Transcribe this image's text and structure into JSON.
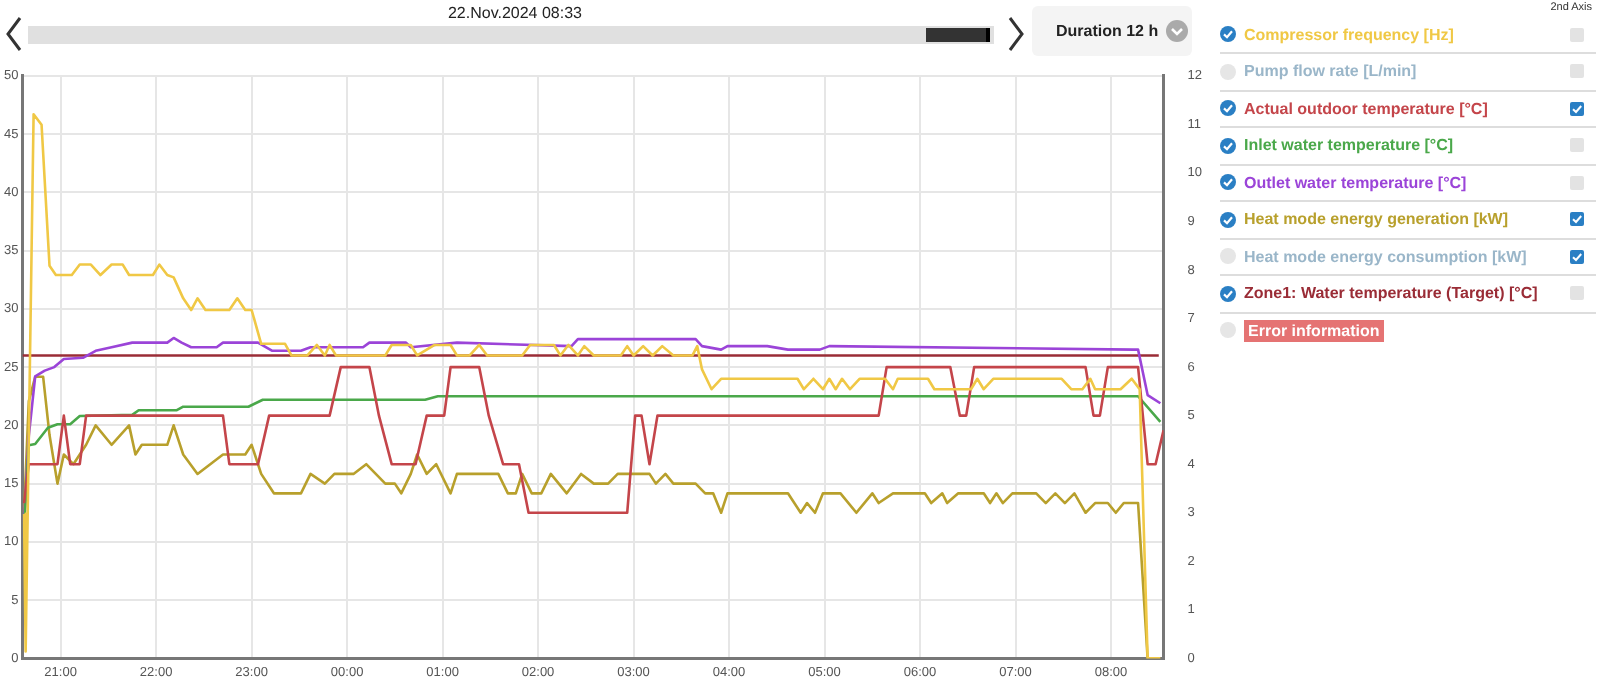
{
  "chart_data": {
    "type": "line",
    "title": "22.Nov.2024 08:33",
    "annotations": [
      "Duration 12 h",
      "2nd Axis",
      "Error information"
    ],
    "xlim": [
      "2024-11-21T20:36",
      "2024-11-22T08:33"
    ],
    "xticks": [
      {
        "value": "2024-11-21T21:00",
        "label": "21:00"
      },
      {
        "value": "2024-11-21T22:00",
        "label": "22:00"
      },
      {
        "value": "2024-11-21T23:00",
        "label": "23:00"
      },
      {
        "value": "2024-11-22T00:00",
        "label": "00:00"
      },
      {
        "value": "2024-11-22T01:00",
        "label": "01:00"
      },
      {
        "value": "2024-11-22T02:00",
        "label": "02:00"
      },
      {
        "value": "2024-11-22T03:00",
        "label": "03:00"
      },
      {
        "value": "2024-11-22T04:00",
        "label": "04:00"
      },
      {
        "value": "2024-11-22T05:00",
        "label": "05:00"
      },
      {
        "value": "2024-11-22T06:00",
        "label": "06:00"
      },
      {
        "value": "2024-11-22T07:00",
        "label": "07:00"
      },
      {
        "value": "2024-11-22T08:00",
        "label": "08:00"
      }
    ],
    "ylim": [
      0,
      50
    ],
    "yticks": [
      0,
      5,
      10,
      15,
      20,
      25,
      30,
      35,
      40,
      45,
      50
    ],
    "y2lim": [
      0,
      12
    ],
    "y2ticks": [
      0,
      1,
      2,
      3,
      4,
      5,
      6,
      7,
      8,
      9,
      10,
      11,
      12
    ],
    "grid": true,
    "legend": "right",
    "series": [
      {
        "name": "Compressor frequency [Hz]",
        "color": "#f0c845",
        "x": [
          "2024-11-21T20:37",
          "2024-11-21T20:38",
          "2024-11-21T20:43",
          "2024-11-21T20:48",
          "2024-11-21T20:53",
          "2024-11-21T20:57",
          "2024-11-21T21:07",
          "2024-11-21T21:12",
          "2024-11-21T21:19",
          "2024-11-21T21:25",
          "2024-11-21T21:32",
          "2024-11-21T21:39",
          "2024-11-21T21:43",
          "2024-11-21T21:58",
          "2024-11-21T22:02",
          "2024-11-21T22:07",
          "2024-11-21T22:11",
          "2024-11-21T22:17",
          "2024-11-21T22:22",
          "2024-11-21T22:26",
          "2024-11-21T22:31",
          "2024-11-21T22:46",
          "2024-11-21T22:51",
          "2024-11-21T22:56",
          "2024-11-21T23:00",
          "2024-11-21T23:06",
          "2024-11-21T23:21",
          "2024-11-21T23:25",
          "2024-11-21T23:35",
          "2024-11-21T23:41",
          "2024-11-21T23:46",
          "2024-11-21T23:49",
          "2024-11-21T23:53",
          "2024-11-22T00:24",
          "2024-11-22T00:28",
          "2024-11-22T00:40",
          "2024-11-22T00:44",
          "2024-11-22T00:55",
          "2024-11-22T01:05",
          "2024-11-22T01:09",
          "2024-11-22T01:17",
          "2024-11-22T01:23",
          "2024-11-22T01:28",
          "2024-11-22T01:50",
          "2024-11-22T01:55",
          "2024-11-22T02:10",
          "2024-11-22T02:14",
          "2024-11-22T02:19",
          "2024-11-22T02:25",
          "2024-11-22T02:29",
          "2024-11-22T02:35",
          "2024-11-22T02:52",
          "2024-11-22T02:56",
          "2024-11-22T03:00",
          "2024-11-22T03:06",
          "2024-11-22T03:12",
          "2024-11-22T03:18",
          "2024-11-22T03:25",
          "2024-11-22T03:37",
          "2024-11-22T03:40",
          "2024-11-22T03:43",
          "2024-11-22T03:49",
          "2024-11-22T03:55",
          "2024-11-22T04:43",
          "2024-11-22T04:47",
          "2024-11-22T04:53",
          "2024-11-22T04:59",
          "2024-11-22T05:03",
          "2024-11-22T05:07",
          "2024-11-22T05:11",
          "2024-11-22T05:16",
          "2024-11-22T05:22",
          "2024-11-22T05:38",
          "2024-11-22T05:43",
          "2024-11-22T05:46",
          "2024-11-22T06:05",
          "2024-11-22T06:09",
          "2024-11-22T06:32",
          "2024-11-22T06:36",
          "2024-11-22T06:40",
          "2024-11-22T06:46",
          "2024-11-22T07:29",
          "2024-11-22T07:35",
          "2024-11-22T07:42",
          "2024-11-22T07:47",
          "2024-11-22T07:50",
          "2024-11-22T08:06",
          "2024-11-22T08:13",
          "2024-11-22T08:18",
          "2024-11-22T08:23",
          "2024-11-22T08:31"
        ],
        "values": [
          12.4,
          0.6,
          46.7,
          45.8,
          33.7,
          32.9,
          32.9,
          33.8,
          33.8,
          32.9,
          33.8,
          33.8,
          32.9,
          32.9,
          33.8,
          32.9,
          32.7,
          30.9,
          29.9,
          30.9,
          29.9,
          29.9,
          30.9,
          29.9,
          29.9,
          27,
          27,
          26,
          26,
          26.9,
          26,
          26.9,
          26,
          26,
          26.9,
          26.9,
          26,
          26.9,
          26.9,
          26,
          26,
          26.9,
          26,
          26,
          26.9,
          26.9,
          26,
          26.9,
          26,
          26.8,
          26,
          26,
          26.8,
          26,
          26.8,
          26,
          26.8,
          26,
          26,
          26.8,
          24.8,
          23.1,
          24,
          24,
          23.1,
          24,
          23.1,
          24,
          23.1,
          24,
          23.1,
          24,
          24,
          23.1,
          24,
          24,
          23.1,
          23.1,
          24,
          23.1,
          24,
          24,
          23.1,
          23.1,
          24,
          23.1,
          23.1,
          24,
          23.1,
          0,
          0
        ]
      },
      {
        "name": "Pump flow rate [L/min]"
      },
      {
        "name": "Actual outdoor temperature [°C]",
        "color": "#c4454a",
        "axis": "y2",
        "x": [
          "2024-11-21T20:37",
          "2024-11-21T20:40",
          "2024-11-21T20:58",
          "2024-11-21T21:02",
          "2024-11-21T21:06",
          "2024-11-21T21:12",
          "2024-11-21T21:16",
          "2024-11-21T22:42",
          "2024-11-21T22:46",
          "2024-11-21T23:04",
          "2024-11-21T23:11",
          "2024-11-21T23:49",
          "2024-11-21T23:56",
          "2024-11-22T00:14",
          "2024-11-22T00:20",
          "2024-11-22T00:28",
          "2024-11-22T00:43",
          "2024-11-22T00:50",
          "2024-11-22T01:01",
          "2024-11-22T01:05",
          "2024-11-22T01:23",
          "2024-11-22T01:29",
          "2024-11-22T01:38",
          "2024-11-22T01:48",
          "2024-11-22T01:54",
          "2024-11-22T02:56",
          "2024-11-22T03:01",
          "2024-11-22T03:05",
          "2024-11-22T03:10",
          "2024-11-22T03:15",
          "2024-11-22T05:34",
          "2024-11-22T05:39",
          "2024-11-22T06:19",
          "2024-11-22T06:25",
          "2024-11-22T06:29",
          "2024-11-22T06:34",
          "2024-11-22T07:44",
          "2024-11-22T07:49",
          "2024-11-22T07:53",
          "2024-11-22T07:58",
          "2024-11-22T08:17",
          "2024-11-22T08:23",
          "2024-11-22T08:28",
          "2024-11-22T08:33"
        ],
        "values": [
          3.2,
          4,
          4,
          5,
          4,
          4,
          5,
          5,
          4,
          4,
          5,
          5,
          6,
          6,
          5,
          4,
          4,
          5,
          5,
          6,
          6,
          5,
          4,
          4,
          3,
          3,
          5,
          5,
          4,
          5,
          5,
          6,
          6,
          5,
          5,
          6,
          6,
          5,
          5,
          6,
          6,
          4,
          4,
          4.7
        ]
      },
      {
        "name": "Inlet water temperature [°C]",
        "color": "#4aa84a",
        "x": [
          "2024-11-21T20:37",
          "2024-11-21T20:40",
          "2024-11-21T20:44",
          "2024-11-21T20:52",
          "2024-11-21T20:58",
          "2024-11-21T21:06",
          "2024-11-21T21:12",
          "2024-11-21T21:45",
          "2024-11-21T21:49",
          "2024-11-21T22:13",
          "2024-11-21T22:17",
          "2024-11-21T22:58",
          "2024-11-21T23:07",
          "2024-11-22T00:49",
          "2024-11-22T00:57",
          "2024-11-22T02:21",
          "2024-11-22T08:17",
          "2024-11-22T08:31"
        ],
        "values": [
          11.2,
          18.3,
          18.4,
          19.8,
          20.1,
          20.1,
          20.8,
          20.9,
          21.3,
          21.3,
          21.6,
          21.6,
          22.2,
          22.2,
          22.5,
          22.5,
          22.5,
          20.3
        ]
      },
      {
        "name": "Outlet water temperature [°C]",
        "color": "#9b44d8",
        "x": [
          "2024-11-21T20:37",
          "2024-11-21T20:40",
          "2024-11-21T20:44",
          "2024-11-21T20:50",
          "2024-11-21T20:56",
          "2024-11-21T21:02",
          "2024-11-21T21:14",
          "2024-11-21T21:22",
          "2024-11-21T21:32",
          "2024-11-21T21:45",
          "2024-11-21T22:07",
          "2024-11-21T22:11",
          "2024-11-21T22:16",
          "2024-11-21T22:22",
          "2024-11-21T22:38",
          "2024-11-21T22:42",
          "2024-11-21T23:04",
          "2024-11-21T23:13",
          "2024-11-21T23:31",
          "2024-11-21T23:37",
          "2024-11-22T00:10",
          "2024-11-22T00:14",
          "2024-11-22T00:37",
          "2024-11-22T00:40",
          "2024-11-22T01:09",
          "2024-11-22T02:21",
          "2024-11-22T02:25",
          "2024-11-22T03:39",
          "2024-11-22T03:43",
          "2024-11-22T03:55",
          "2024-11-22T03:59",
          "2024-11-22T04:24",
          "2024-11-22T04:37",
          "2024-11-22T04:57",
          "2024-11-22T05:03",
          "2024-11-22T08:14",
          "2024-11-22T08:17",
          "2024-11-22T08:23",
          "2024-11-22T08:31"
        ],
        "values": [
          11.8,
          19.1,
          24.2,
          24.7,
          25,
          25.7,
          25.8,
          26.4,
          26.7,
          27.1,
          27.1,
          27.5,
          27.1,
          26.7,
          26.7,
          27.1,
          27.1,
          26.4,
          26.4,
          26.7,
          26.7,
          27.1,
          27.1,
          26.7,
          27.1,
          26.8,
          27.4,
          27.4,
          26.8,
          26.5,
          26.8,
          26.8,
          26.5,
          26.5,
          26.8,
          26.5,
          26.5,
          22.6,
          21.9
        ]
      },
      {
        "name": "Heat mode energy generation [kW]",
        "color": "#b8a02c",
        "axis": "y2",
        "x": [
          "2024-11-21T20:37",
          "2024-11-21T20:40",
          "2024-11-21T20:44",
          "2024-11-21T20:49",
          "2024-11-21T20:53",
          "2024-11-21T20:58",
          "2024-11-21T21:02",
          "2024-11-21T21:08",
          "2024-11-21T21:12",
          "2024-11-21T21:16",
          "2024-11-21T21:22",
          "2024-11-21T21:32",
          "2024-11-21T21:43",
          "2024-11-21T21:47",
          "2024-11-21T21:51",
          "2024-11-21T22:07",
          "2024-11-21T22:11",
          "2024-11-21T22:17",
          "2024-11-21T22:26",
          "2024-11-21T22:34",
          "2024-11-21T22:42",
          "2024-11-21T22:56",
          "2024-11-21T23:00",
          "2024-11-21T23:06",
          "2024-11-21T23:14",
          "2024-11-21T23:31",
          "2024-11-21T23:37",
          "2024-11-21T23:46",
          "2024-11-21T23:52",
          "2024-11-22T00:04",
          "2024-11-22T00:12",
          "2024-11-22T00:24",
          "2024-11-22T00:30",
          "2024-11-22T00:34",
          "2024-11-22T00:40",
          "2024-11-22T00:44",
          "2024-11-22T00:50",
          "2024-11-22T00:56",
          "2024-11-22T01:05",
          "2024-11-22T01:09",
          "2024-11-22T01:35",
          "2024-11-22T01:41",
          "2024-11-22T01:46",
          "2024-11-22T01:50",
          "2024-11-22T01:56",
          "2024-11-22T02:02",
          "2024-11-22T02:08",
          "2024-11-22T02:18",
          "2024-11-22T02:27",
          "2024-11-22T02:35",
          "2024-11-22T02:44",
          "2024-11-22T02:50",
          "2024-11-22T03:10",
          "2024-11-22T03:14",
          "2024-11-22T03:20",
          "2024-11-22T03:25",
          "2024-11-22T03:39",
          "2024-11-22T03:45",
          "2024-11-22T03:50",
          "2024-11-22T03:55",
          "2024-11-22T03:59",
          "2024-11-22T04:37",
          "2024-11-22T04:45",
          "2024-11-22T04:49",
          "2024-11-22T04:54",
          "2024-11-22T04:59",
          "2024-11-22T05:10",
          "2024-11-22T05:20",
          "2024-11-22T05:30",
          "2024-11-22T05:34",
          "2024-11-22T05:43",
          "2024-11-22T06:03",
          "2024-11-22T06:07",
          "2024-11-22T06:14",
          "2024-11-22T06:17",
          "2024-11-22T06:24",
          "2024-11-22T06:40",
          "2024-11-22T06:44",
          "2024-11-22T06:48",
          "2024-11-22T06:52",
          "2024-11-22T06:58",
          "2024-11-22T07:13",
          "2024-11-22T07:19",
          "2024-11-22T07:25",
          "2024-11-22T07:31",
          "2024-11-22T07:37",
          "2024-11-22T07:44",
          "2024-11-22T07:50",
          "2024-11-22T07:58",
          "2024-11-22T08:03",
          "2024-11-22T08:08",
          "2024-11-22T08:17",
          "2024-11-22T08:23"
        ],
        "values": [
          3,
          5.3,
          5.8,
          5.8,
          4.6,
          3.6,
          4.2,
          4,
          4.2,
          4.4,
          4.8,
          4.4,
          4.8,
          4.2,
          4.4,
          4.4,
          4.8,
          4.2,
          3.8,
          4,
          4.2,
          4.2,
          4.4,
          3.8,
          3.4,
          3.4,
          3.8,
          3.6,
          3.8,
          3.8,
          4,
          3.6,
          3.6,
          3.4,
          3.8,
          4.2,
          3.8,
          4,
          3.4,
          3.8,
          3.8,
          3.4,
          3.4,
          3.8,
          3.4,
          3.4,
          3.8,
          3.4,
          3.8,
          3.6,
          3.6,
          3.8,
          3.8,
          3.6,
          3.8,
          3.6,
          3.6,
          3.4,
          3.4,
          3,
          3.4,
          3.4,
          3,
          3.2,
          3,
          3.4,
          3.4,
          3,
          3.4,
          3.2,
          3.4,
          3.4,
          3.2,
          3.4,
          3.2,
          3.4,
          3.4,
          3.2,
          3.4,
          3.2,
          3.4,
          3.4,
          3.2,
          3.4,
          3.2,
          3.4,
          3,
          3.2,
          3.2,
          3,
          3.2,
          3.2,
          0
        ]
      },
      {
        "name": "Heat mode energy consumption [kW]",
        "axis": "y2"
      },
      {
        "name": "Zone1: Water temperature (Target) [°C]",
        "color": "#9a2c36",
        "x": [
          "2024-11-21T20:36",
          "2024-11-22T08:30"
        ],
        "values": [
          26,
          26
        ]
      }
    ]
  }
}
